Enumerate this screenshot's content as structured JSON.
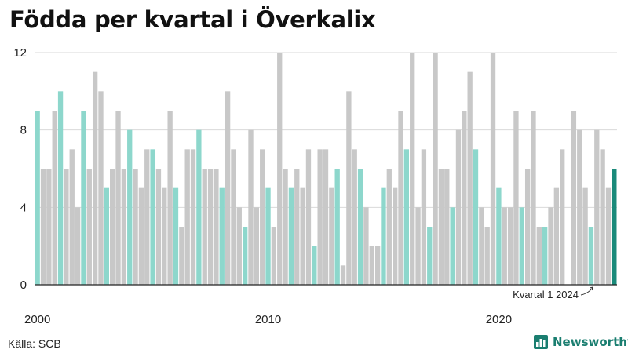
{
  "chart_data": {
    "type": "bar",
    "title": "Födda per kvartal i Överkalix",
    "xlabel": "",
    "ylabel": "",
    "ylim": [
      0,
      12
    ],
    "yticks": [
      0,
      4,
      8,
      12
    ],
    "xtick_labels": [
      {
        "label": "2000",
        "index": 0
      },
      {
        "label": "2010",
        "index": 40
      },
      {
        "label": "2020",
        "index": 80
      }
    ],
    "grid": true,
    "legend": "none",
    "first_quarter": "2000 Q1",
    "last_quarter": "2024 Q1",
    "values": [
      9,
      6,
      6,
      9,
      10,
      6,
      7,
      4,
      9,
      6,
      11,
      10,
      5,
      6,
      9,
      6,
      8,
      6,
      5,
      7,
      7,
      6,
      5,
      9,
      5,
      3,
      7,
      7,
      8,
      6,
      6,
      6,
      5,
      10,
      7,
      4,
      3,
      8,
      4,
      7,
      5,
      3,
      12,
      6,
      5,
      6,
      5,
      7,
      2,
      7,
      7,
      5,
      6,
      1,
      10,
      7,
      6,
      4,
      2,
      2,
      5,
      6,
      5,
      9,
      7,
      12,
      4,
      7,
      3,
      12,
      6,
      6,
      4,
      8,
      9,
      11,
      7,
      4,
      3,
      12,
      5,
      4,
      4,
      9,
      4,
      6,
      9,
      3,
      3,
      4,
      5,
      7,
      0,
      9,
      8,
      5,
      3,
      8,
      7,
      5,
      6
    ],
    "annotation": {
      "text": "Kvartal 1 2024",
      "index": 100
    },
    "colors": {
      "q1": "#8dd7cc",
      "other": "#c8c8c8",
      "latest": "#1a8a7a",
      "grid": "#d9d9d9",
      "axis": "#222222"
    }
  },
  "source": "Källa: SCB",
  "brand": {
    "name": "Newsworthy",
    "icon": "bar-chart-icon"
  }
}
